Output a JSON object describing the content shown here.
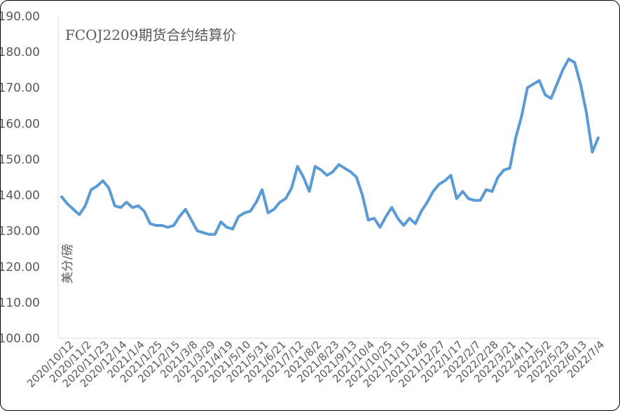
{
  "chart_data": {
    "type": "line",
    "title": "FCOJ2209期货合约结算价",
    "ylabel": "美分/磅",
    "xlabel": "",
    "ylim": [
      100,
      190
    ],
    "yticks": [
      "100.00",
      "110.00",
      "120.00",
      "130.00",
      "140.00",
      "150.00",
      "160.00",
      "170.00",
      "180.00",
      "190.00"
    ],
    "xticks": [
      "2020/10/12",
      "2020/11/2",
      "2020/11/23",
      "2020/12/14",
      "2021/1/4",
      "2021/1/25",
      "2021/2/15",
      "2021/3/8",
      "2021/3/29",
      "2021/4/19",
      "2021/5/10",
      "2021/5/31",
      "2021/6/21",
      "2021/7/12",
      "2021/8/2",
      "2021/8/23",
      "2021/9/13",
      "2021/10/4",
      "2021/10/25",
      "2021/11/15",
      "2021/12/6",
      "2021/12/27",
      "2022/1/17",
      "2022/2/7",
      "2022/2/28",
      "2022/3/21",
      "2022/4/11",
      "2022/5/2",
      "2022/5/23",
      "2022/6/13",
      "2022/7/4"
    ],
    "grid": false,
    "color": "#5b9bd5",
    "series": [
      {
        "name": "",
        "x": [
          "2020/10/12",
          "2020/10/19",
          "2020/10/26",
          "2020/11/2",
          "2020/11/9",
          "2020/11/16",
          "2020/11/23",
          "2020/11/30",
          "2020/12/7",
          "2020/12/14",
          "2020/12/21",
          "2020/12/28",
          "2021/1/4",
          "2021/1/11",
          "2021/1/18",
          "2021/1/25",
          "2021/2/1",
          "2021/2/8",
          "2021/2/15",
          "2021/2/22",
          "2021/3/1",
          "2021/3/8",
          "2021/3/15",
          "2021/3/22",
          "2021/3/29",
          "2021/4/5",
          "2021/4/12",
          "2021/4/19",
          "2021/4/26",
          "2021/5/3",
          "2021/5/10",
          "2021/5/17",
          "2021/5/24",
          "2021/5/31",
          "2021/6/7",
          "2021/6/14",
          "2021/6/21",
          "2021/6/28",
          "2021/7/5",
          "2021/7/12",
          "2021/7/19",
          "2021/7/26",
          "2021/8/2",
          "2021/8/9",
          "2021/8/16",
          "2021/8/23",
          "2021/8/30",
          "2021/9/6",
          "2021/9/13",
          "2021/9/20",
          "2021/9/27",
          "2021/10/4",
          "2021/10/11",
          "2021/10/18",
          "2021/10/25",
          "2021/11/1",
          "2021/11/8",
          "2021/11/15",
          "2021/11/22",
          "2021/11/29",
          "2021/12/6",
          "2021/12/13",
          "2021/12/20",
          "2021/12/27",
          "2022/1/3",
          "2022/1/10",
          "2022/1/17",
          "2022/1/24",
          "2022/1/31",
          "2022/2/7",
          "2022/2/14",
          "2022/2/21",
          "2022/2/28",
          "2022/3/7",
          "2022/3/14",
          "2022/3/21",
          "2022/3/28",
          "2022/4/4",
          "2022/4/11",
          "2022/4/18",
          "2022/4/25",
          "2022/5/2",
          "2022/5/9",
          "2022/5/16",
          "2022/5/23",
          "2022/5/30",
          "2022/6/6",
          "2022/6/13",
          "2022/6/20",
          "2022/6/27",
          "2022/7/4",
          "2022/7/11"
        ],
        "values": [
          139.5,
          137.5,
          136.0,
          134.5,
          137.0,
          141.5,
          142.5,
          144.0,
          142.0,
          137.0,
          136.5,
          138.0,
          136.5,
          137.0,
          135.5,
          132.0,
          131.5,
          131.5,
          131.0,
          131.5,
          134.0,
          136.0,
          133.0,
          130.0,
          129.5,
          129.0,
          129.0,
          132.5,
          131.0,
          130.5,
          134.0,
          135.0,
          135.5,
          138.0,
          141.5,
          135.0,
          136.0,
          138.0,
          139.0,
          142.0,
          148.0,
          145.0,
          141.0,
          148.0,
          147.0,
          145.5,
          146.5,
          148.5,
          147.5,
          146.5,
          145.0,
          140.0,
          133.0,
          133.5,
          131.0,
          134.0,
          136.5,
          133.5,
          131.5,
          133.5,
          132.0,
          135.5,
          138.0,
          141.0,
          143.0,
          144.0,
          145.5,
          139.0,
          141.0,
          139.0,
          138.5,
          138.5,
          141.5,
          141.0,
          145.0,
          147.0,
          147.5,
          156.0,
          162.0,
          170.0,
          171.0,
          172.0,
          168.0,
          167.0,
          171.0,
          175.0,
          178.0,
          177.0,
          171.0,
          163.0,
          152.0,
          156.0
        ]
      }
    ]
  }
}
